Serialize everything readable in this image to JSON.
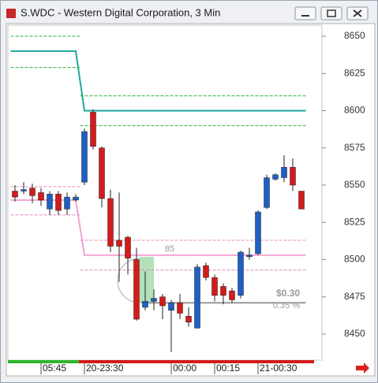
{
  "chart_data": {
    "type": "candlestick",
    "title": "S.WDC - Western Digital Corporation, 3 Min",
    "categories": [
      null,
      null,
      null,
      "05:45",
      null,
      null,
      null,
      null,
      "20-23:30",
      null,
      null,
      null,
      null,
      null,
      null,
      null,
      null,
      null,
      "00:00",
      null,
      null,
      null,
      null,
      "00:15",
      null,
      null,
      null,
      null,
      "21-00:30",
      null,
      null,
      null,
      null,
      null
    ],
    "open": [
      8546,
      8546,
      8548,
      8545,
      8534,
      8544,
      8534,
      8540,
      8552,
      8599,
      8575,
      8541,
      8513,
      8515,
      8500,
      8468,
      8472,
      8475,
      8466,
      8471,
      8462,
      8454,
      8496,
      8488,
      8482,
      8479,
      8476,
      8502,
      8504,
      8535,
      8554,
      8555,
      8562,
      8546
    ],
    "close": [
      8542,
      8547,
      8543,
      8540,
      8544,
      8533,
      8542,
      8542,
      8586,
      8576,
      8541,
      8509,
      8509,
      8501,
      8460,
      8472,
      8474,
      8469,
      8471,
      8464,
      8458,
      8495,
      8488,
      8476,
      8476,
      8473,
      8505,
      8503,
      8532,
      8555,
      8557,
      8562,
      8550,
      8534
    ],
    "high": [
      8550,
      8552,
      8551,
      8548,
      8546,
      8546,
      8545,
      8544,
      8588,
      8601,
      8576,
      8547,
      8545,
      8516,
      8508,
      8492,
      8480,
      8477,
      8473,
      8477,
      8468,
      8497,
      8498,
      8490,
      8484,
      8481,
      8506,
      8508,
      8533,
      8557,
      8558,
      8570,
      8568,
      8546
    ],
    "low": [
      8539,
      8544,
      8538,
      8536,
      8530,
      8530,
      8530,
      8539,
      8550,
      8574,
      8535,
      8505,
      8485,
      8490,
      8459,
      8466,
      8466,
      8460,
      8438,
      8460,
      8455,
      8454,
      8486,
      8472,
      8470,
      8471,
      8474,
      8500,
      8503,
      8534,
      8553,
      8552,
      8546,
      8534
    ],
    "up_color": "#1f5fc4",
    "down_color": "#d41a1a",
    "lines": [
      {
        "color": "#1aa89a",
        "dash": false,
        "values": [
          8640,
          8640,
          8640,
          8640,
          8640,
          8640,
          8640,
          8640,
          8600,
          8600,
          8600,
          8600,
          8600,
          8600,
          8600,
          8600,
          8600,
          8600,
          8600,
          8600,
          8600,
          8600,
          8600,
          8600,
          8600,
          8600,
          8600,
          8600,
          8600,
          8600,
          8600,
          8600,
          8600,
          8600
        ]
      },
      {
        "color": "#f2a3d2",
        "dash": false,
        "values": [
          8540,
          8540,
          8540,
          8540,
          8540,
          8540,
          8540,
          8540,
          8503,
          8503,
          8503,
          8503,
          8503,
          8503,
          8503,
          8503,
          8503,
          8503,
          8503,
          8503,
          8503,
          8503,
          8503,
          8503,
          8503,
          8503,
          8503,
          8503,
          8503,
          8503,
          8503,
          8503,
          8503,
          8503
        ]
      },
      {
        "color": "#999999",
        "dash": false,
        "values": [
          null,
          null,
          null,
          null,
          null,
          null,
          null,
          null,
          null,
          null,
          null,
          null,
          null,
          null,
          null,
          8471,
          8471,
          8471,
          8471,
          8471,
          8471,
          8471,
          8471,
          8471,
          8471,
          8471,
          8471,
          8471,
          8471,
          8471,
          8471,
          8471,
          8471,
          8471
        ]
      },
      {
        "color": "#2db52d",
        "dash": true,
        "values": [
          8650,
          8650,
          8650,
          8650,
          8650,
          8650,
          8650,
          8650,
          null,
          null,
          null,
          null,
          null,
          null,
          null,
          null,
          null,
          null,
          null,
          null,
          null,
          null,
          null,
          null,
          null,
          null,
          null,
          null,
          null,
          null,
          null,
          null,
          null,
          null
        ]
      },
      {
        "color": "#2db52d",
        "dash": true,
        "values": [
          8629,
          8629,
          8629,
          8629,
          8629,
          8629,
          8629,
          8629,
          null,
          null,
          null,
          null,
          null,
          null,
          null,
          null,
          null,
          null,
          null,
          null,
          null,
          null,
          null,
          null,
          null,
          null,
          null,
          null,
          null,
          null,
          null,
          null,
          null,
          null
        ]
      },
      {
        "color": "#2db52d",
        "dash": true,
        "values": [
          null,
          null,
          null,
          null,
          null,
          null,
          null,
          null,
          8610,
          8610,
          8610,
          8610,
          8610,
          8610,
          8610,
          8610,
          8610,
          8610,
          8610,
          8610,
          8610,
          8610,
          8610,
          8610,
          8610,
          8610,
          8610,
          8610,
          8610,
          8610,
          8610,
          8610,
          8610,
          8610
        ]
      },
      {
        "color": "#2db52d",
        "dash": true,
        "values": [
          null,
          null,
          null,
          null,
          null,
          null,
          null,
          null,
          8590,
          8590,
          8590,
          8590,
          8590,
          8590,
          8590,
          8590,
          8590,
          8590,
          8590,
          8590,
          8590,
          8590,
          8590,
          8590,
          8590,
          8590,
          8590,
          8590,
          8590,
          8590,
          8590,
          8590,
          8590,
          8590
        ]
      },
      {
        "color": "#e58ac4",
        "dash": true,
        "values": [
          8549,
          8549,
          8549,
          8549,
          8549,
          8549,
          8549,
          8549,
          null,
          null,
          null,
          null,
          null,
          null,
          null,
          null,
          null,
          null,
          null,
          null,
          null,
          null,
          null,
          null,
          null,
          null,
          null,
          null,
          null,
          null,
          null,
          null,
          null,
          null
        ]
      },
      {
        "color": "#e58ac4",
        "dash": true,
        "values": [
          8530,
          8530,
          8530,
          8530,
          8530,
          8530,
          8530,
          8530,
          null,
          null,
          null,
          null,
          null,
          null,
          null,
          null,
          null,
          null,
          null,
          null,
          null,
          null,
          null,
          null,
          null,
          null,
          null,
          null,
          null,
          null,
          null,
          null,
          null,
          null
        ]
      },
      {
        "color": "#e58ac4",
        "dash": true,
        "values": [
          null,
          null,
          null,
          null,
          null,
          null,
          null,
          null,
          8513,
          8513,
          8513,
          8513,
          8513,
          8513,
          8513,
          8513,
          8513,
          8513,
          8513,
          8513,
          8513,
          8513,
          8513,
          8513,
          8513,
          8513,
          8513,
          8513,
          8513,
          8513,
          8513,
          8513,
          8513,
          8513
        ]
      },
      {
        "color": "#e58ac4",
        "dash": true,
        "values": [
          null,
          null,
          null,
          null,
          null,
          null,
          null,
          null,
          8493,
          8493,
          8493,
          8493,
          8493,
          8493,
          8493,
          8493,
          8493,
          8493,
          8493,
          8493,
          8493,
          8493,
          8493,
          8493,
          8493,
          8493,
          8493,
          8493,
          8493,
          8493,
          8493,
          8493,
          8493,
          8493
        ]
      }
    ],
    "annotations": [
      "85",
      "$0.30",
      "0.35 %"
    ],
    "ylim": [
      8432.5,
      8657.4
    ],
    "yticks": [
      8450,
      8475,
      8500,
      8525,
      8550,
      8575,
      8600,
      8625,
      8650
    ],
    "grid": false
  }
}
